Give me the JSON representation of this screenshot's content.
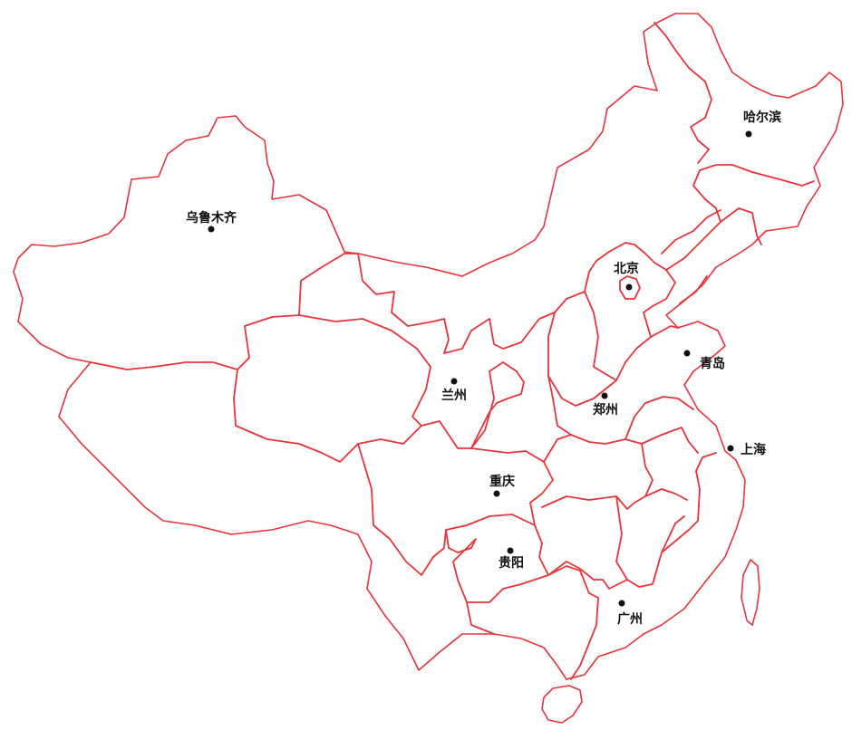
{
  "map": {
    "colors": {
      "boundary": "#e8343a",
      "background": "#ffffff",
      "city": "#111111"
    },
    "cities": [
      {
        "id": "wulumuqi",
        "name": "乌鲁木齐"
      },
      {
        "id": "haerbin",
        "name": "哈尔滨"
      },
      {
        "id": "beijing",
        "name": "北京"
      },
      {
        "id": "qingdao",
        "name": "青岛"
      },
      {
        "id": "lanzhou",
        "name": "兰州"
      },
      {
        "id": "zhengzhou",
        "name": "郑州"
      },
      {
        "id": "shanghai",
        "name": "上海"
      },
      {
        "id": "chongqing",
        "name": "重庆"
      },
      {
        "id": "guiyang",
        "name": "贵阳"
      },
      {
        "id": "guangzhou",
        "name": "广州"
      }
    ]
  }
}
